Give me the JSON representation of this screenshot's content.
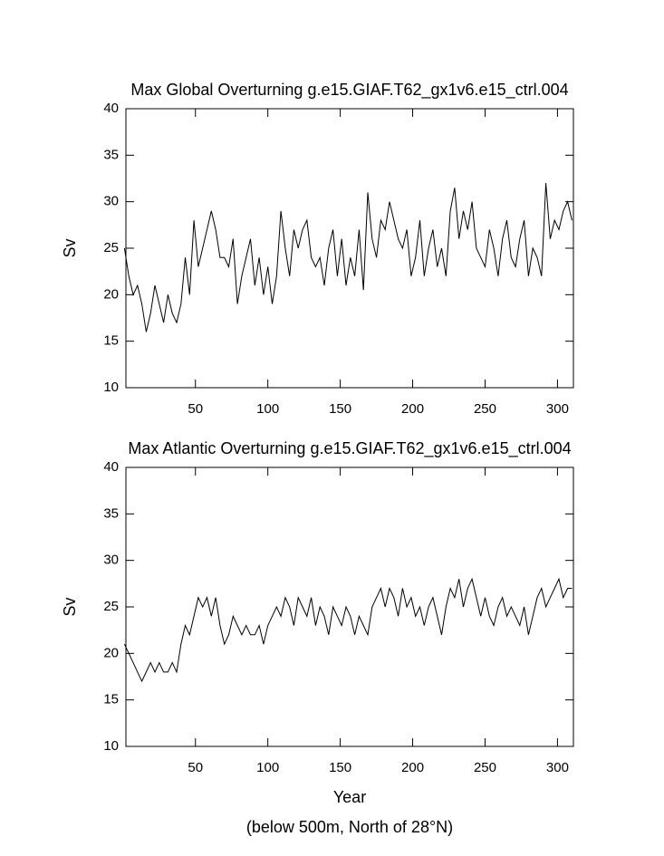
{
  "chart_data": [
    {
      "type": "line",
      "title": "Max Global Overturning g.e15.GIAF.T62_gx1v6.e15_ctrl.004",
      "ylabel": "Sv",
      "x": [
        1,
        4,
        7,
        10,
        13,
        16,
        19,
        22,
        25,
        28,
        31,
        34,
        37,
        40,
        43,
        46,
        49,
        52,
        55,
        58,
        61,
        64,
        67,
        70,
        73,
        76,
        79,
        82,
        85,
        88,
        91,
        94,
        97,
        100,
        103,
        106,
        109,
        112,
        115,
        118,
        121,
        124,
        127,
        130,
        133,
        136,
        139,
        142,
        145,
        148,
        151,
        154,
        157,
        160,
        163,
        166,
        169,
        172,
        175,
        178,
        181,
        184,
        187,
        190,
        193,
        196,
        199,
        202,
        205,
        208,
        211,
        214,
        217,
        220,
        223,
        226,
        229,
        232,
        235,
        238,
        241,
        244,
        247,
        250,
        253,
        256,
        259,
        262,
        265,
        268,
        271,
        274,
        277,
        280,
        283,
        286,
        289,
        292,
        295,
        298,
        301,
        304,
        307,
        310
      ],
      "series": [
        {
          "name": "Global",
          "color": "#000000",
          "values": [
            25,
            22,
            20,
            21,
            19,
            16,
            18,
            21,
            19,
            17,
            20,
            18,
            17,
            19,
            24,
            20,
            28,
            23,
            25,
            27,
            29,
            27,
            24,
            24,
            23,
            26,
            19,
            22,
            24,
            26,
            21,
            24,
            20,
            23,
            19,
            22,
            29,
            25,
            22,
            27,
            25,
            27,
            28,
            24,
            23,
            24,
            21,
            25,
            27,
            22,
            26,
            21,
            24,
            22,
            27,
            20.5,
            31,
            26,
            24,
            28,
            27,
            30,
            28,
            26,
            25,
            27,
            22,
            24,
            28,
            22,
            25,
            27,
            23,
            25,
            22,
            29,
            31.5,
            26,
            29,
            27,
            30,
            25,
            24,
            23,
            27,
            25,
            22,
            26,
            28,
            24,
            23,
            26,
            28,
            22,
            25,
            24,
            22,
            32,
            26,
            28,
            27,
            29,
            30,
            28
          ]
        }
      ],
      "xlim": [
        2,
        311
      ],
      "xticks": [
        50,
        100,
        150,
        200,
        250,
        300
      ],
      "ylim": [
        10,
        40
      ],
      "yticks": [
        10,
        15,
        20,
        25,
        30,
        35,
        40
      ]
    },
    {
      "type": "line",
      "title": "Max Atlantic Overturning g.e15.GIAF.T62_gx1v6.e15_ctrl.004",
      "ylabel": "Sv",
      "xlabel": "Year",
      "note": "(below 500m, North of 28°N)",
      "x": [
        1,
        4,
        7,
        10,
        13,
        16,
        19,
        22,
        25,
        28,
        31,
        34,
        37,
        40,
        43,
        46,
        49,
        52,
        55,
        58,
        61,
        64,
        67,
        70,
        73,
        76,
        79,
        82,
        85,
        88,
        91,
        94,
        97,
        100,
        103,
        106,
        109,
        112,
        115,
        118,
        121,
        124,
        127,
        130,
        133,
        136,
        139,
        142,
        145,
        148,
        151,
        154,
        157,
        160,
        163,
        166,
        169,
        172,
        175,
        178,
        181,
        184,
        187,
        190,
        193,
        196,
        199,
        202,
        205,
        208,
        211,
        214,
        217,
        220,
        223,
        226,
        229,
        232,
        235,
        238,
        241,
        244,
        247,
        250,
        253,
        256,
        259,
        262,
        265,
        268,
        271,
        274,
        277,
        280,
        283,
        286,
        289,
        292,
        295,
        298,
        301,
        304,
        307,
        310
      ],
      "series": [
        {
          "name": "Atlantic",
          "color": "#000000",
          "values": [
            21,
            20,
            19,
            18,
            17,
            18,
            19,
            18,
            19,
            18,
            18,
            19,
            18,
            21,
            23,
            22,
            24,
            26,
            25,
            26,
            24,
            26,
            23,
            21,
            22,
            24,
            23,
            22,
            23,
            22,
            22,
            23,
            21,
            23,
            24,
            25,
            24,
            26,
            25,
            23,
            26,
            25,
            24,
            26,
            23,
            25,
            24,
            22,
            25,
            24,
            23,
            25,
            24,
            22,
            24,
            23,
            22,
            25,
            26,
            27,
            25,
            27,
            26,
            24,
            27,
            25,
            26,
            24,
            25,
            23,
            25,
            26,
            24,
            22,
            25,
            27,
            26,
            28,
            25,
            27,
            28,
            26,
            24,
            26,
            24,
            23,
            25,
            26,
            24,
            25,
            24,
            23,
            25,
            22,
            24,
            26,
            27,
            25,
            26,
            27,
            28,
            26,
            27,
            27
          ]
        }
      ],
      "xlim": [
        2,
        311
      ],
      "xticks": [
        50,
        100,
        150,
        200,
        250,
        300
      ],
      "ylim": [
        10,
        40
      ],
      "yticks": [
        10,
        15,
        20,
        25,
        30,
        35,
        40
      ]
    }
  ]
}
